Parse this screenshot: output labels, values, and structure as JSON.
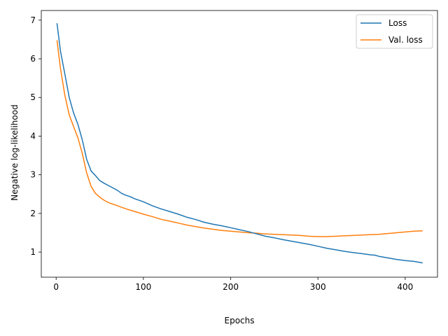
{
  "chart_data": {
    "type": "line",
    "title": "",
    "xlabel": "Epochs",
    "ylabel": "Negative log-likelihood",
    "xlim": [
      -17,
      437
    ],
    "ylim": [
      0.35,
      7.25
    ],
    "xticks": [
      0,
      100,
      200,
      300,
      400
    ],
    "yticks": [
      1,
      2,
      3,
      4,
      5,
      6,
      7
    ],
    "grid": false,
    "legend": "top-right",
    "colors": {
      "Loss": "#1f77b4",
      "Val. loss": "#ff7f0e"
    },
    "series": [
      {
        "name": "Loss",
        "x": [
          1,
          5,
          10,
          15,
          20,
          25,
          30,
          35,
          40,
          45,
          50,
          55,
          60,
          65,
          70,
          75,
          80,
          85,
          90,
          95,
          100,
          110,
          120,
          130,
          140,
          150,
          160,
          170,
          180,
          190,
          200,
          210,
          220,
          230,
          240,
          250,
          260,
          270,
          280,
          290,
          300,
          310,
          320,
          330,
          340,
          350,
          360,
          365,
          370,
          380,
          390,
          400,
          410,
          420
        ],
        "y": [
          6.92,
          6.2,
          5.6,
          5.0,
          4.6,
          4.3,
          3.9,
          3.4,
          3.1,
          2.98,
          2.85,
          2.78,
          2.72,
          2.66,
          2.6,
          2.52,
          2.47,
          2.43,
          2.38,
          2.34,
          2.3,
          2.2,
          2.12,
          2.05,
          1.98,
          1.9,
          1.84,
          1.77,
          1.72,
          1.68,
          1.63,
          1.58,
          1.53,
          1.47,
          1.41,
          1.37,
          1.32,
          1.28,
          1.24,
          1.2,
          1.15,
          1.1,
          1.06,
          1.02,
          0.99,
          0.96,
          0.93,
          0.92,
          0.89,
          0.85,
          0.81,
          0.78,
          0.76,
          0.72
        ]
      },
      {
        "name": "Val. loss",
        "x": [
          1,
          5,
          10,
          15,
          20,
          25,
          30,
          35,
          40,
          45,
          50,
          55,
          60,
          65,
          70,
          80,
          90,
          100,
          110,
          120,
          130,
          140,
          150,
          160,
          170,
          180,
          190,
          200,
          210,
          220,
          230,
          240,
          250,
          260,
          270,
          280,
          290,
          300,
          310,
          320,
          330,
          340,
          350,
          360,
          370,
          380,
          390,
          400,
          410,
          420
        ],
        "y": [
          6.48,
          5.75,
          5.05,
          4.55,
          4.25,
          3.95,
          3.55,
          3.05,
          2.7,
          2.52,
          2.42,
          2.34,
          2.28,
          2.24,
          2.2,
          2.12,
          2.05,
          1.98,
          1.92,
          1.85,
          1.8,
          1.75,
          1.7,
          1.66,
          1.62,
          1.59,
          1.56,
          1.54,
          1.52,
          1.5,
          1.49,
          1.47,
          1.46,
          1.45,
          1.44,
          1.43,
          1.41,
          1.4,
          1.4,
          1.41,
          1.42,
          1.43,
          1.44,
          1.45,
          1.46,
          1.48,
          1.5,
          1.52,
          1.54,
          1.55
        ]
      }
    ]
  }
}
